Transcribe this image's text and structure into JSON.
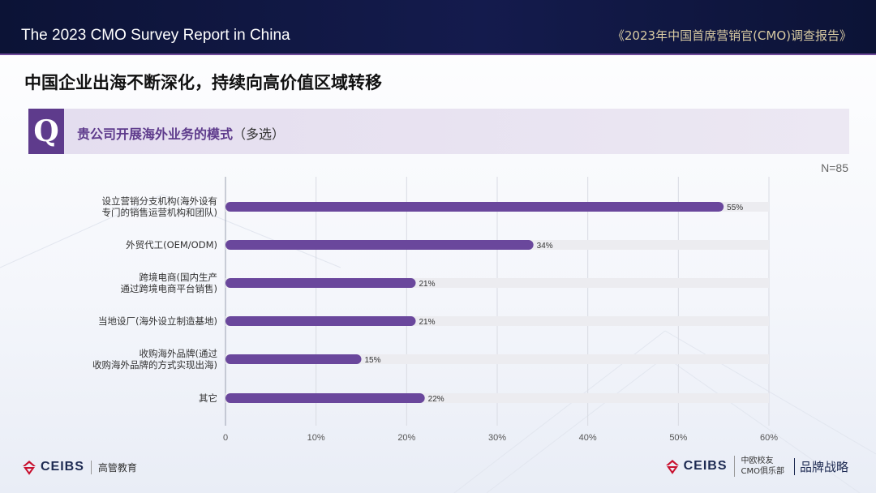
{
  "header": {
    "title_en": "The 2023 CMO Survey Report in China",
    "title_cn": "《2023年中国首席营销官(CMO)调查报告》"
  },
  "headline": "中国企业出海不断深化，持续向高价值区域转移",
  "question": {
    "marker": "Q",
    "text": "贵公司开展海外业务的模式",
    "note": "（多选）"
  },
  "sample_size": "N=85",
  "chart_data": {
    "type": "bar",
    "orientation": "horizontal",
    "categories": [
      [
        "设立营销分支机构(海外设有",
        "专门的销售运营机构和团队)"
      ],
      [
        "外贸代工(OEM/ODM)"
      ],
      [
        "跨境电商(国内生产",
        "通过跨境电商平台销售)"
      ],
      [
        "当地设厂(海外设立制造基地)"
      ],
      [
        "收购海外品牌(通过",
        "收购海外品牌的方式实现出海)"
      ],
      [
        "其它"
      ]
    ],
    "values": [
      55,
      34,
      21,
      21,
      15,
      22
    ],
    "value_labels": [
      "55%",
      "34%",
      "21%",
      "21%",
      "15%",
      "22%"
    ],
    "xlim": [
      0,
      60
    ],
    "xticks": [
      0,
      10,
      20,
      30,
      40,
      50,
      60
    ],
    "xtick_labels": [
      "0",
      "10%",
      "20%",
      "30%",
      "40%",
      "50%",
      "60%"
    ],
    "grid": true,
    "colors": {
      "bar": "#6a479c",
      "track": "#ececf0",
      "grid": "#d9dbe3"
    }
  },
  "footer": {
    "left_brand": "CEIBS",
    "left_sub": "高管教育",
    "right_brand": "CEIBS",
    "right_sub_1": "中欧校友",
    "right_sub_2": "CMO俱乐部",
    "partner": "品牌战略"
  }
}
